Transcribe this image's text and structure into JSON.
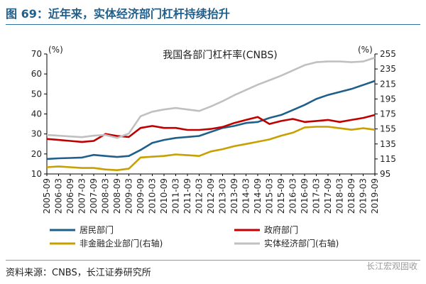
{
  "figure": {
    "title": "图 69：近年来，实体经济部门杠杆持续抬升",
    "source": "资料来源：CNBS，长江证券研究所",
    "watermark": "长江宏观固收"
  },
  "chart_data": {
    "type": "line",
    "title": "我国各部门杠杆率(CNBS)",
    "left_unit": "(%)",
    "right_unit": "(%)",
    "ylim_left": [
      10,
      70
    ],
    "ylim_right": [
      95,
      255
    ],
    "yticks_left": [
      "10",
      "20",
      "30",
      "40",
      "50",
      "60",
      "70"
    ],
    "yticks_right": [
      "95",
      "115",
      "135",
      "155",
      "175",
      "195",
      "215",
      "235",
      "255"
    ],
    "xticks": [
      "2005-09",
      "2006-03",
      "2006-09",
      "2007-03",
      "2007-09",
      "2008-03",
      "2008-09",
      "2009-03",
      "2009-09",
      "2010-03",
      "2010-09",
      "2011-03",
      "2011-09",
      "2012-03",
      "2012-09",
      "2013-03",
      "2013-09",
      "2014-03",
      "2014-09",
      "2015-03",
      "2015-09",
      "2016-03",
      "2016-09",
      "2017-03",
      "2017-09",
      "2018-03",
      "2018-09",
      "2019-03",
      "2019-09"
    ],
    "grid": false,
    "legend_position": "bottom",
    "series": [
      {
        "name": "居民部门",
        "axis": "left",
        "color": "#1f5f8b",
        "values": [
          17.5,
          17.8,
          18.0,
          18.2,
          19.5,
          19.0,
          18.5,
          19.0,
          22.0,
          25.5,
          27.0,
          28.0,
          28.5,
          29.0,
          31.0,
          33.0,
          34.0,
          35.5,
          36.0,
          38.0,
          39.5,
          42.0,
          44.5,
          47.5,
          49.5,
          51.0,
          52.5,
          54.5,
          56.5
        ]
      },
      {
        "name": "政府部门",
        "axis": "left",
        "color": "#c00000",
        "values": [
          27.5,
          27.0,
          26.5,
          26.0,
          26.5,
          30.0,
          29.0,
          28.5,
          33.0,
          34.0,
          33.0,
          33.0,
          32.0,
          32.0,
          32.5,
          33.5,
          35.5,
          37.0,
          38.5,
          35.0,
          36.5,
          37.5,
          36.0,
          36.5,
          37.0,
          36.0,
          37.0,
          38.0,
          39.5
        ]
      },
      {
        "name": "非金融企业部门(右轴)",
        "axis": "right",
        "color": "#c8a000",
        "values": [
          104,
          105,
          104,
          103,
          103,
          101,
          100,
          102,
          117,
          118,
          119,
          121,
          120,
          119,
          125,
          128,
          132,
          135,
          138,
          141,
          146,
          150,
          157,
          158,
          158,
          156,
          154,
          156,
          154
        ]
      },
      {
        "name": "实体经济部门(右轴)",
        "axis": "right",
        "color": "#c0c0c0",
        "values": [
          147,
          146,
          145,
          144,
          146,
          147,
          143,
          149,
          172,
          178,
          181,
          183,
          181,
          179,
          185,
          192,
          200,
          207,
          214,
          220,
          226,
          233,
          240,
          244,
          245,
          245,
          244,
          245,
          250
        ]
      }
    ]
  }
}
